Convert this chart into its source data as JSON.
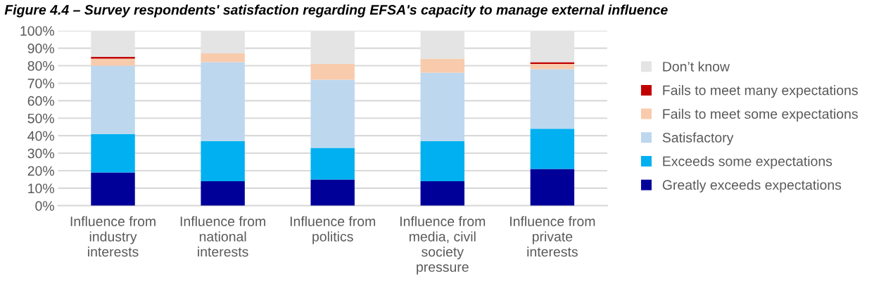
{
  "chart_data": {
    "type": "bar",
    "stacked": true,
    "title": "Figure 4.4 – Survey respondents' satisfaction regarding EFSA's capacity to manage external influence",
    "categories": [
      "Influence from industry interests",
      "Influence from national interests",
      "Influence from politics",
      "Influence from media, civil society pressure",
      "Influence from private interests"
    ],
    "series": [
      {
        "name": "Greatly exceeds expectations",
        "color": "#000099",
        "values": [
          19,
          14,
          15,
          14,
          21
        ]
      },
      {
        "name": "Exceeds some expectations",
        "color": "#00b0f0",
        "values": [
          22,
          23,
          18,
          23,
          23
        ]
      },
      {
        "name": "Satisfactory",
        "color": "#bdd7ee",
        "values": [
          39,
          45,
          39,
          39,
          34
        ]
      },
      {
        "name": "Fails to meet some expectations",
        "color": "#f8cbad",
        "values": [
          4,
          5,
          9,
          8,
          3
        ]
      },
      {
        "name": "Fails to meet many expectations",
        "color": "#c00000",
        "values": [
          1,
          0,
          0,
          0,
          1
        ]
      },
      {
        "name": "Don’t know",
        "color": "#e4e4e4",
        "values": [
          15,
          13,
          19,
          16,
          18
        ]
      }
    ],
    "ylim": [
      0,
      100
    ],
    "yticks": [
      {
        "value": 0,
        "label": "0%"
      },
      {
        "value": 10,
        "label": "10%"
      },
      {
        "value": 20,
        "label": "20%"
      },
      {
        "value": 30,
        "label": "30%"
      },
      {
        "value": 40,
        "label": "40%"
      },
      {
        "value": 50,
        "label": "50%"
      },
      {
        "value": 60,
        "label": "60%"
      },
      {
        "value": 70,
        "label": "70%"
      },
      {
        "value": 80,
        "label": "80%"
      },
      {
        "value": 90,
        "label": "90%"
      },
      {
        "value": 100,
        "label": "100%"
      }
    ],
    "grid": "y",
    "legend": "right"
  }
}
